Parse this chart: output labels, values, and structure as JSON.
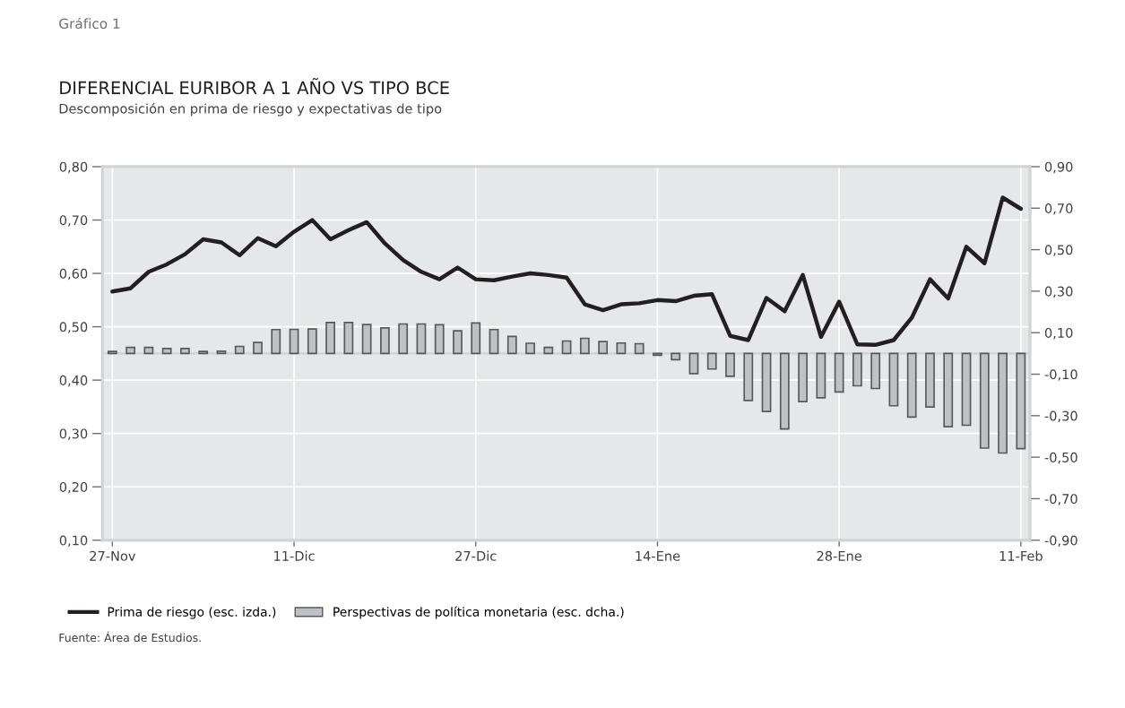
{
  "chart_data": {
    "type": "bar",
    "title": "DIFERENCIAL EURIBOR A 1 AÑO VS TIPO BCE",
    "subtitle": "Descomposición en prima de riesgo y expectativas de tipo",
    "annotations": [
      "Gráfico 1",
      "Fuente: Área de Estudios."
    ],
    "categories": [
      "27-Nov",
      null,
      null,
      null,
      null,
      null,
      null,
      null,
      null,
      null,
      "11-Dic",
      null,
      null,
      null,
      null,
      null,
      null,
      null,
      null,
      null,
      "27-Dic",
      null,
      null,
      null,
      null,
      null,
      null,
      null,
      null,
      null,
      "14-Ene",
      null,
      null,
      null,
      null,
      null,
      null,
      null,
      null,
      null,
      "28-Ene",
      null,
      null,
      null,
      null,
      null,
      null,
      null,
      null,
      null,
      "11-Feb"
    ],
    "series": [
      {
        "name": "Prima de riesgo (esc. izda.)",
        "type": "line",
        "color": "#231f20",
        "values": [
          0.566,
          0.572,
          0.603,
          0.617,
          0.636,
          0.664,
          0.658,
          0.634,
          0.666,
          0.651,
          0.678,
          0.7,
          0.664,
          0.681,
          0.696,
          0.656,
          0.625,
          0.603,
          0.589,
          0.611,
          0.589,
          0.587,
          0.594,
          0.6,
          0.597,
          0.592,
          0.542,
          0.531,
          0.542,
          0.544,
          0.55,
          0.548,
          0.558,
          0.561,
          0.483,
          0.475,
          0.554,
          0.529,
          0.597,
          0.481,
          0.547,
          0.467,
          0.466,
          0.475,
          0.517,
          0.589,
          0.553,
          0.65,
          0.619,
          0.742,
          0.721
        ]
      },
      {
        "name": "Perspectivas de política monetaria (esc. dcha.)",
        "axis": "y2",
        "color": "#c0c1c4",
        "values": [
          0.01,
          0.029,
          0.029,
          0.024,
          0.024,
          0.01,
          0.011,
          0.034,
          0.053,
          0.115,
          0.116,
          0.118,
          0.149,
          0.149,
          0.139,
          0.123,
          0.142,
          0.142,
          0.138,
          0.109,
          0.147,
          0.115,
          0.082,
          0.049,
          0.029,
          0.06,
          0.073,
          0.057,
          0.05,
          0.047,
          -0.009,
          -0.03,
          -0.097,
          -0.075,
          -0.11,
          -0.227,
          -0.28,
          -0.364,
          -0.232,
          -0.214,
          -0.186,
          -0.156,
          -0.169,
          -0.252,
          -0.307,
          -0.258,
          -0.353,
          -0.346,
          -0.456,
          -0.48,
          -0.459
        ]
      }
    ],
    "ylim": [
      0.1,
      0.8
    ],
    "yticks": [
      {
        "value": 0.1,
        "label": "0,10"
      },
      {
        "value": 0.2,
        "label": "0,20"
      },
      {
        "value": 0.3,
        "label": "0,30"
      },
      {
        "value": 0.4,
        "label": "0,40"
      },
      {
        "value": 0.5,
        "label": "0,50"
      },
      {
        "value": 0.6,
        "label": "0,60"
      },
      {
        "value": 0.7,
        "label": "0,70"
      },
      {
        "value": 0.8,
        "label": "0,80"
      }
    ],
    "y2lim": [
      -0.9,
      0.9
    ],
    "y2ticks": [
      {
        "value": -0.9,
        "label": "-0,90"
      },
      {
        "value": -0.7,
        "label": "-0,70"
      },
      {
        "value": -0.5,
        "label": "-0,50"
      },
      {
        "value": -0.3,
        "label": "-0,30"
      },
      {
        "value": -0.1,
        "label": "-0,10"
      },
      {
        "value": 0.1,
        "label": "0,10"
      },
      {
        "value": 0.3,
        "label": "0,30"
      },
      {
        "value": 0.5,
        "label": "0,50"
      },
      {
        "value": 0.7,
        "label": "0,70"
      },
      {
        "value": 0.9,
        "label": "0,90"
      }
    ],
    "ref_lines": [
      {
        "axis": "y2",
        "value": 0,
        "color": "#d0d1d3"
      }
    ],
    "grid": true,
    "legend": "bottom",
    "line_style": "solid",
    "marker": "none"
  }
}
